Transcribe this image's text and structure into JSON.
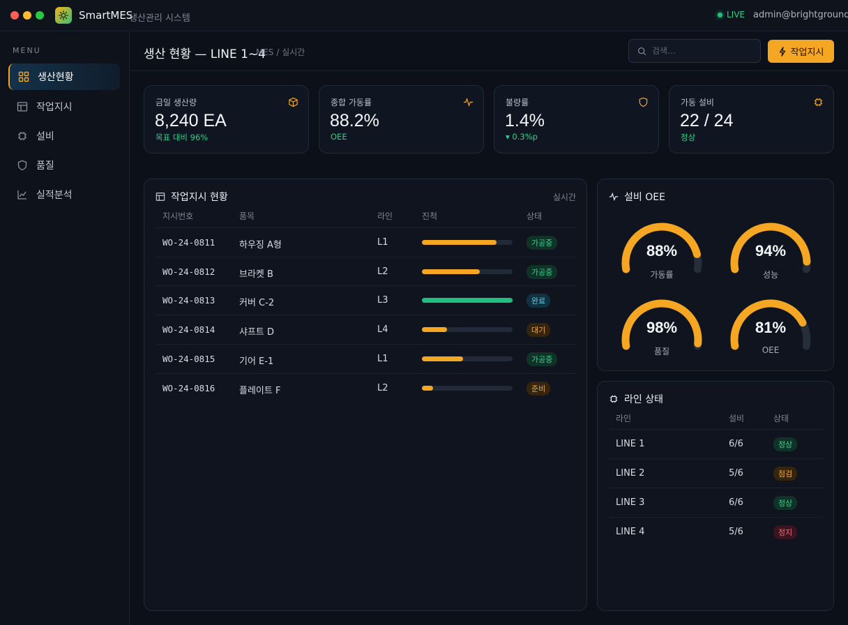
{
  "window": {
    "app_name": "SmartMES",
    "app_subtitle": "생산관리 시스템",
    "live_label": "LIVE",
    "user": "admin@brightground"
  },
  "sidebar": {
    "menu_label": "MENU",
    "items": [
      {
        "label": "생산현황",
        "icon": "grid-icon",
        "active": true
      },
      {
        "label": "작업지시",
        "icon": "table-icon",
        "active": false
      },
      {
        "label": "설비",
        "icon": "chip-icon",
        "active": false
      },
      {
        "label": "품질",
        "icon": "shield-icon",
        "active": false
      },
      {
        "label": "실적분석",
        "icon": "chart-line-icon",
        "active": false
      }
    ]
  },
  "header": {
    "title": "생산 현황 — LINE 1~4",
    "breadcrumb": "MES / 실시간",
    "search_placeholder": "검색…",
    "action_label": "작업지시"
  },
  "kpis": [
    {
      "label": "금일 생산량",
      "value": "8,240 EA",
      "sub": "목표 대비 96%",
      "icon": "box-icon"
    },
    {
      "label": "종합 가동률",
      "value": "88.2%",
      "sub": "OEE",
      "icon": "pulse-icon"
    },
    {
      "label": "불량률",
      "value": "1.4%",
      "sub": "▾ 0.3%p",
      "icon": "shield-icon"
    },
    {
      "label": "가동 설비",
      "value": "22 / 24",
      "sub": "정상",
      "icon": "chip-icon"
    }
  ],
  "orders": {
    "title": "작업지시 현황",
    "meta": "실시간",
    "columns": [
      "지시번호",
      "품목",
      "라인",
      "진척",
      "상태"
    ],
    "rows": [
      {
        "id": "WO-24-0811",
        "item": "하우징 A형",
        "line": "L1",
        "progress": 0.82,
        "status": "가공중",
        "kind": "proc"
      },
      {
        "id": "WO-24-0812",
        "item": "브라켓 B",
        "line": "L2",
        "progress": 0.64,
        "status": "가공중",
        "kind": "proc"
      },
      {
        "id": "WO-24-0813",
        "item": "커버 C-2",
        "line": "L3",
        "progress": 1.0,
        "status": "완료",
        "kind": "done"
      },
      {
        "id": "WO-24-0814",
        "item": "샤프트 D",
        "line": "L4",
        "progress": 0.28,
        "status": "대기",
        "kind": "wait"
      },
      {
        "id": "WO-24-0815",
        "item": "기어 E-1",
        "line": "L1",
        "progress": 0.45,
        "status": "가공중",
        "kind": "proc"
      },
      {
        "id": "WO-24-0816",
        "item": "플레이트 F",
        "line": "L2",
        "progress": 0.12,
        "status": "준비",
        "kind": "ready"
      }
    ]
  },
  "oee": {
    "title": "설비 OEE",
    "gauges": [
      {
        "value": 88,
        "display": "88%",
        "label": "가동률"
      },
      {
        "value": 94,
        "display": "94%",
        "label": "성능"
      },
      {
        "value": 98,
        "display": "98%",
        "label": "품질"
      },
      {
        "value": 81,
        "display": "81%",
        "label": "OEE"
      }
    ]
  },
  "lines": {
    "title": "라인 상태",
    "columns": [
      "라인",
      "설비",
      "상태"
    ],
    "rows": [
      {
        "name": "LINE 1",
        "equip": "6/6",
        "status": "정상",
        "kind": "ok"
      },
      {
        "name": "LINE 2",
        "equip": "5/6",
        "status": "점검",
        "kind": "check"
      },
      {
        "name": "LINE 3",
        "equip": "6/6",
        "status": "정상",
        "kind": "ok"
      },
      {
        "name": "LINE 4",
        "equip": "5/6",
        "status": "정지",
        "kind": "stop"
      }
    ]
  },
  "colors": {
    "accent": "#f5a623",
    "success": "#22c07a",
    "background": "#0b1019"
  }
}
